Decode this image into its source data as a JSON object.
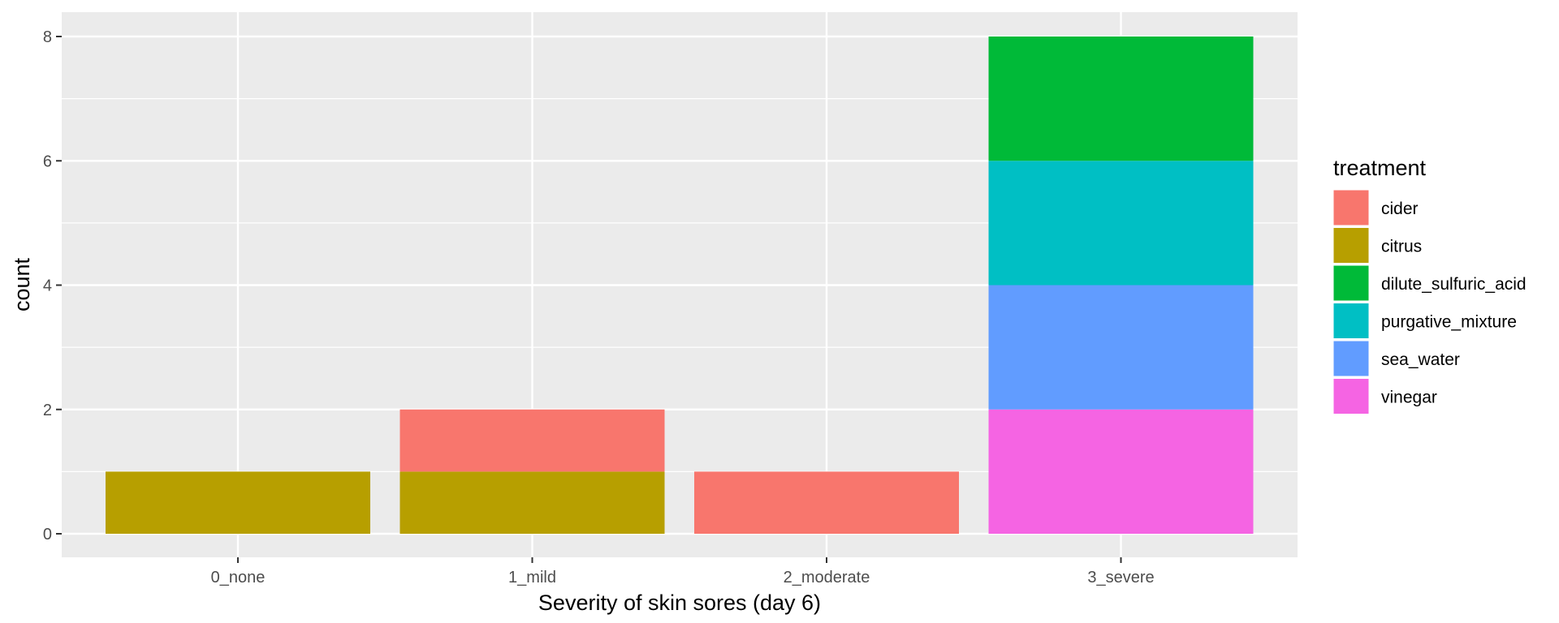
{
  "chart_data": {
    "type": "bar",
    "stacked": true,
    "categories": [
      "0_none",
      "1_mild",
      "2_moderate",
      "3_severe"
    ],
    "series": [
      {
        "name": "cider",
        "color": "#F8766D",
        "values": [
          0,
          1,
          1,
          0
        ]
      },
      {
        "name": "citrus",
        "color": "#B79F00",
        "values": [
          1,
          1,
          0,
          0
        ]
      },
      {
        "name": "dilute_sulfuric_acid",
        "color": "#00BA38",
        "values": [
          0,
          0,
          0,
          2
        ]
      },
      {
        "name": "purgative_mixture",
        "color": "#00BFC4",
        "values": [
          0,
          0,
          0,
          2
        ]
      },
      {
        "name": "sea_water",
        "color": "#619CFF",
        "values": [
          0,
          0,
          0,
          2
        ]
      },
      {
        "name": "vinegar",
        "color": "#F564E3",
        "values": [
          0,
          0,
          0,
          2
        ]
      }
    ],
    "xlabel": "Severity of skin sores (day 6)",
    "ylabel": "count",
    "ylim": [
      0,
      8
    ],
    "yticks": [
      0,
      2,
      4,
      6,
      8
    ],
    "legend_title": "treatment",
    "legend_position": "right",
    "grid": true,
    "panel_background": "#EBEBEB"
  }
}
